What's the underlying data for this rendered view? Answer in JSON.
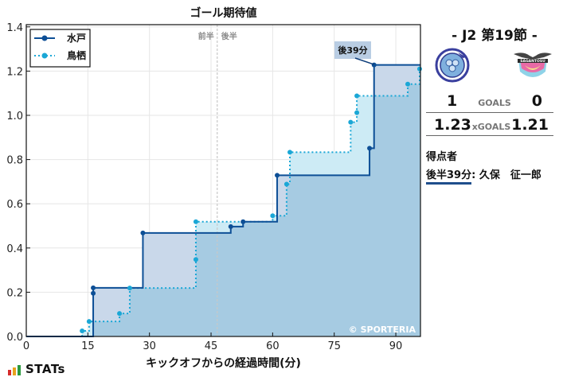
{
  "chart_data": {
    "type": "line",
    "subtype": "step",
    "title": "ゴール期待値",
    "xlabel": "キックオフからの経過時間(分)",
    "ylabel": "",
    "xlim": [
      0,
      96
    ],
    "ylim": [
      0,
      1.41
    ],
    "xticks": [
      0,
      15,
      30,
      45,
      60,
      75,
      90
    ],
    "yticks": [
      0.0,
      0.2,
      0.4,
      0.6,
      0.8,
      1.0,
      1.2,
      1.4
    ],
    "ytick_labels": [
      "0.0",
      "0.2",
      "0.4",
      "0.6",
      "0.8",
      "1.0",
      "1.2",
      "1.4"
    ],
    "grid": true,
    "legend_position": "upper left",
    "halftime_line": {
      "x": 46.5,
      "left_label": "前半",
      "right_label": "後半"
    },
    "annotations": [
      {
        "text": "後39分",
        "x": 84.7,
        "y": 1.23,
        "label_x": 78,
        "label_y": 1.29
      }
    ],
    "watermark": "© SPORTERIA",
    "series": [
      {
        "name": "水戸",
        "color": "#0d4f96",
        "linestyle": "solid",
        "x": [
          0,
          16.3,
          16.3,
          28.4,
          49.8,
          52.8,
          61.1,
          83.6,
          84.7,
          96
        ],
        "y": [
          0,
          0.195,
          0.22,
          0.468,
          0.497,
          0.519,
          0.729,
          0.851,
          1.228,
          1.228
        ]
      },
      {
        "name": "鳥栖",
        "color": "#1aa7d6",
        "linestyle": "dotted",
        "x": [
          0,
          13.6,
          15.3,
          22.7,
          25.2,
          41.3,
          41.3,
          60.0,
          63.4,
          64.2,
          79.0,
          80.5,
          80.5,
          92.9,
          95.8,
          96
        ],
        "y": [
          0,
          0.025,
          0.068,
          0.104,
          0.219,
          0.348,
          0.519,
          0.546,
          0.689,
          0.833,
          0.969,
          1.012,
          1.088,
          1.141,
          1.21,
          1.21
        ]
      }
    ]
  },
  "match": {
    "round": "- J2 第19節 -",
    "home_team": "水戸",
    "away_team": "鳥栖",
    "goals_label": "GOALS",
    "home_goals": "1",
    "away_goals": "0",
    "xgoals_label": "xGOALS",
    "home_xg": "1.23",
    "away_xg": "1.21"
  },
  "scorers": {
    "title": "得点者",
    "items": [
      {
        "time": "後半39分",
        "sep": ":",
        "name": "久保　征一郎"
      }
    ]
  },
  "branding": {
    "stats_logo": "STATs"
  }
}
